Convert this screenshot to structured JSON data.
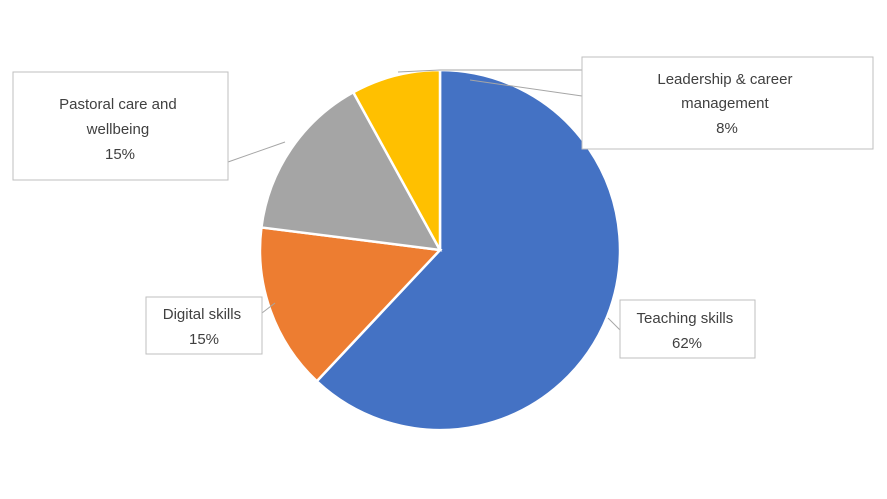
{
  "chart_data": {
    "type": "pie",
    "title": "",
    "slices": [
      {
        "label": "Teaching skills",
        "value": 62,
        "value_label": "62%",
        "color": "#4472C4"
      },
      {
        "label": "Digital skills",
        "value": 15,
        "value_label": "15%",
        "color": "#ED7D31"
      },
      {
        "label": "Pastoral care and wellbeing",
        "value": 15,
        "value_label": "15%",
        "color": "#A5A5A5"
      },
      {
        "label": "Leadership & career management",
        "value": 8,
        "value_label": "8%",
        "color": "#FFC000"
      }
    ],
    "start_angle_deg": 0,
    "direction": "clockwise",
    "legend": "none",
    "data_labels": "callouts"
  }
}
